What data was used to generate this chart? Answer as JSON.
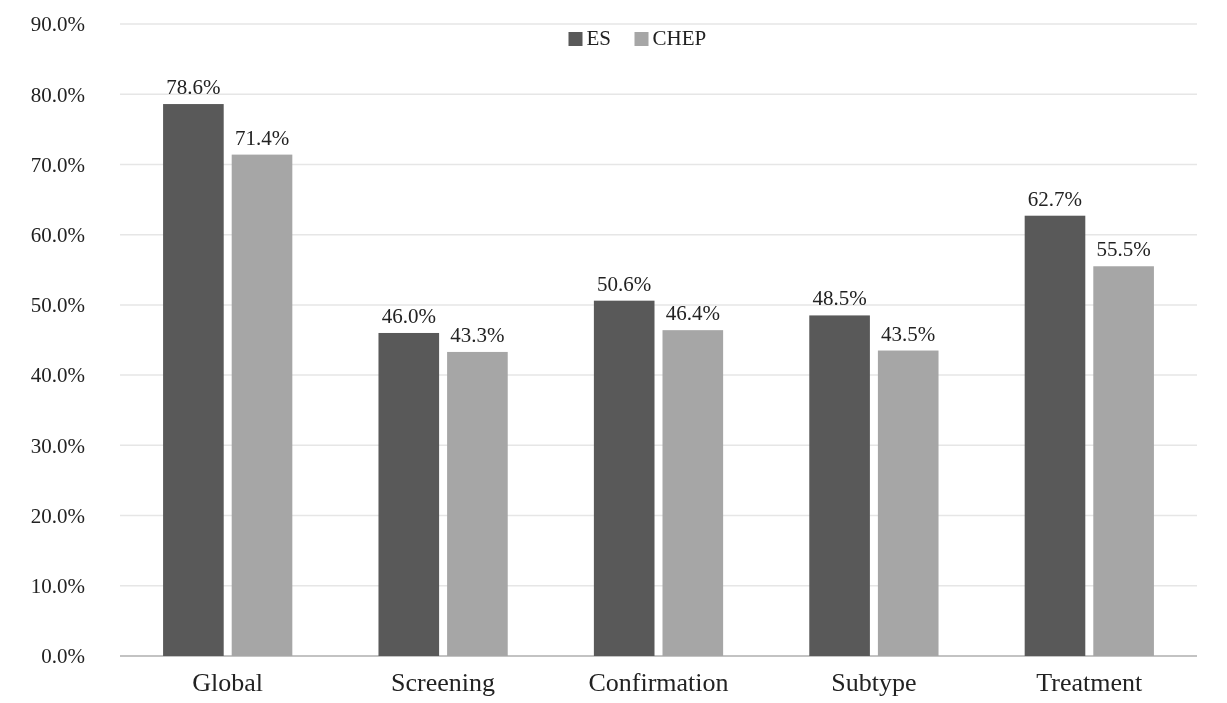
{
  "chart_data": {
    "type": "bar",
    "categories": [
      "Global",
      "Screening",
      "Confirmation",
      "Subtype",
      "Treatment"
    ],
    "series": [
      {
        "name": "ES",
        "color": "#595959",
        "values": [
          78.6,
          46.0,
          50.6,
          48.5,
          62.7
        ]
      },
      {
        "name": "CHEP",
        "color": "#a6a6a6",
        "values": [
          71.4,
          43.3,
          46.4,
          43.5,
          55.5
        ]
      }
    ],
    "ylim": [
      0,
      90
    ],
    "yticks": [
      {
        "value": 0,
        "label": "0.0%"
      },
      {
        "value": 10,
        "label": "10.0%"
      },
      {
        "value": 20,
        "label": "20.0%"
      },
      {
        "value": 30,
        "label": "30.0%"
      },
      {
        "value": 40,
        "label": "40.0%"
      },
      {
        "value": 50,
        "label": "50.0%"
      },
      {
        "value": 60,
        "label": "60.0%"
      },
      {
        "value": 70,
        "label": "70.0%"
      },
      {
        "value": 80,
        "label": "80.0%"
      },
      {
        "value": 90,
        "label": "90.0%"
      }
    ],
    "value_labels": [
      [
        "78.6%",
        "46.0%",
        "50.6%",
        "48.5%",
        "62.7%"
      ],
      [
        "71.4%",
        "43.3%",
        "46.4%",
        "43.5%",
        "55.5%"
      ]
    ],
    "grid": "y",
    "legend": "top"
  }
}
